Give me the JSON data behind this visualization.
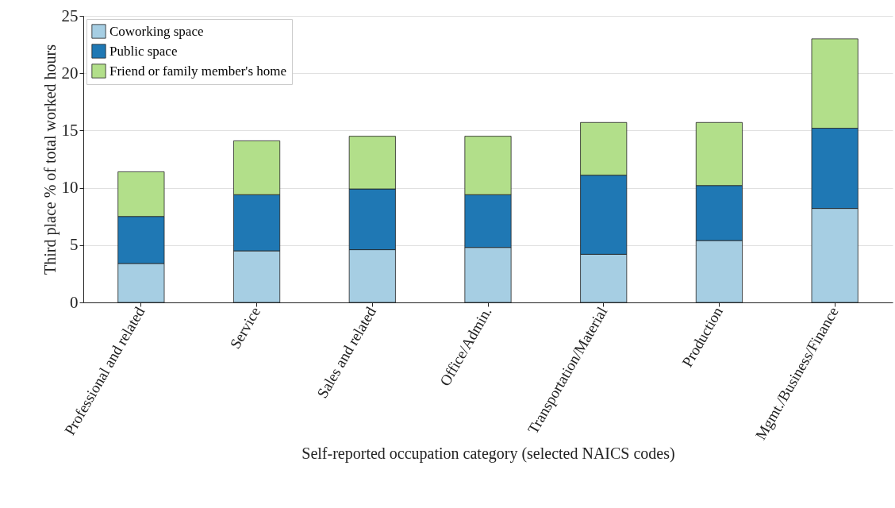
{
  "chart_data": {
    "type": "bar",
    "stacked": true,
    "xlabel": "Self-reported occupation category (selected NAICS codes)",
    "ylabel": "Third place % of total worked hours",
    "categories": [
      "Professional and related",
      "Service",
      "Sales and related",
      "Office/Admin.",
      "Transportation/Material",
      "Production",
      "Mgmt./Business/Finance"
    ],
    "series": [
      {
        "name": "Coworking space",
        "color": "#a6cee3",
        "values": [
          3.4,
          4.5,
          4.6,
          4.8,
          4.2,
          5.4,
          8.2
        ]
      },
      {
        "name": "Public space",
        "color": "#1f78b4",
        "values": [
          4.1,
          4.9,
          5.3,
          4.6,
          6.9,
          4.8,
          7.0
        ]
      },
      {
        "name": "Friend or family member's home",
        "color": "#b2df8a",
        "values": [
          3.9,
          4.7,
          4.6,
          5.1,
          4.6,
          5.5,
          7.8
        ]
      }
    ],
    "ylim": [
      0,
      25
    ],
    "yticks": [
      0,
      5,
      10,
      15,
      20,
      25
    ],
    "grid": "y",
    "legend": "top left"
  }
}
